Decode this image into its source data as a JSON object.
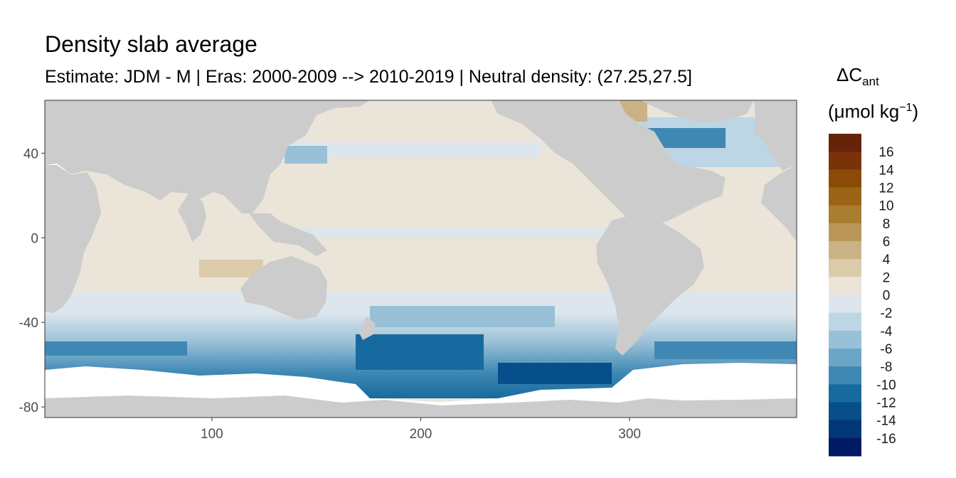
{
  "title": "Density slab average",
  "subtitle": "Estimate: JDM - M | Eras: 2000-2009 --> 2010-2019 | Neutral density: (27.25,27.5]",
  "legend": {
    "title_symbol": "ΔC",
    "title_sub": "ant",
    "title_unit_open": "(μmol kg",
    "title_unit_sup": "−1",
    "title_unit_close": ")",
    "bins": [
      {
        "label": "16",
        "color": "#67220a"
      },
      {
        "label": "14",
        "color": "#7a3208"
      },
      {
        "label": "12",
        "color": "#8b4a06"
      },
      {
        "label": "10",
        "color": "#9a6414"
      },
      {
        "label": "8",
        "color": "#a97e30"
      },
      {
        "label": "6",
        "color": "#ba9758"
      },
      {
        "label": "4",
        "color": "#cbb284"
      },
      {
        "label": "2",
        "color": "#dccbab"
      },
      {
        "label": "0",
        "color": "#ebe4d9"
      },
      {
        "label": "-2",
        "color": "#dde6ed"
      },
      {
        "label": "-4",
        "color": "#bcd6e5"
      },
      {
        "label": "-6",
        "color": "#98c0d6"
      },
      {
        "label": "-8",
        "color": "#6ba6c7"
      },
      {
        "label": "-10",
        "color": "#3f88b4"
      },
      {
        "label": "-12",
        "color": "#176a9f"
      },
      {
        "label": "-14",
        "color": "#064f8a"
      },
      {
        "label": "-16",
        "color": "#023779"
      },
      {
        "label": "",
        "color": "#011a66"
      }
    ]
  },
  "axes": {
    "x_ticks": [
      "100",
      "200",
      "300"
    ],
    "y_ticks": [
      "40",
      "0",
      "-40",
      "-80"
    ],
    "x_tick_values": [
      100,
      200,
      300
    ],
    "y_tick_values": [
      40,
      0,
      -40,
      -80
    ],
    "xlim": [
      20,
      380
    ],
    "ylim": [
      -85,
      65
    ]
  },
  "colors": {
    "land": "#cccccc",
    "missing_ocean": "#ffffff",
    "neutral_ocean": "#ebe4d9",
    "panel_border": "#333333"
  }
}
